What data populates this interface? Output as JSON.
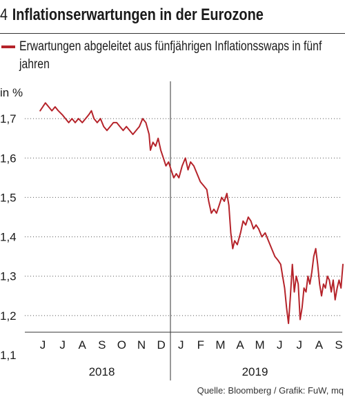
{
  "header": {
    "number": "4",
    "title": "Inflationserwartungen in der Eurozone"
  },
  "legend": {
    "text": "Erwartungen abgeleitet aus fünfjährigen Inflationsswaps in fünf jahren"
  },
  "source": "Quelle: Bloomberg / Grafik: FuW, mq",
  "colors": {
    "series": "#b5232a",
    "grid": "#555555",
    "axis": "#333333"
  },
  "chart_data": {
    "type": "line",
    "unit_label": "in %",
    "ylim": [
      1.1,
      1.8
    ],
    "yticks": [
      1.1,
      1.2,
      1.3,
      1.4,
      1.5,
      1.6,
      1.7
    ],
    "grid": "horizontal dotted",
    "months": [
      "J",
      "J",
      "A",
      "S",
      "O",
      "N",
      "D",
      "J",
      "F",
      "M",
      "A",
      "M",
      "J",
      "J",
      "A",
      "S"
    ],
    "years": [
      "2018",
      "2019"
    ],
    "series": [
      {
        "name": "Erwartungen abgeleitet aus fünfjährigen Inflationsswaps in fünf jahren",
        "points": [
          [
            "2018-05-28",
            1.72
          ],
          [
            "2018-06-01",
            1.73
          ],
          [
            "2018-06-05",
            1.74
          ],
          [
            "2018-06-10",
            1.73
          ],
          [
            "2018-06-15",
            1.72
          ],
          [
            "2018-06-20",
            1.73
          ],
          [
            "2018-06-25",
            1.72
          ],
          [
            "2018-07-01",
            1.71
          ],
          [
            "2018-07-06",
            1.7
          ],
          [
            "2018-07-11",
            1.69
          ],
          [
            "2018-07-16",
            1.7
          ],
          [
            "2018-07-21",
            1.69
          ],
          [
            "2018-07-26",
            1.7
          ],
          [
            "2018-08-01",
            1.69
          ],
          [
            "2018-08-06",
            1.7
          ],
          [
            "2018-08-11",
            1.71
          ],
          [
            "2018-08-15",
            1.72
          ],
          [
            "2018-08-19",
            1.7
          ],
          [
            "2018-08-24",
            1.69
          ],
          [
            "2018-08-29",
            1.7
          ],
          [
            "2018-09-03",
            1.68
          ],
          [
            "2018-09-08",
            1.67
          ],
          [
            "2018-09-13",
            1.68
          ],
          [
            "2018-09-18",
            1.69
          ],
          [
            "2018-09-23",
            1.69
          ],
          [
            "2018-09-28",
            1.68
          ],
          [
            "2018-10-03",
            1.67
          ],
          [
            "2018-10-08",
            1.68
          ],
          [
            "2018-10-13",
            1.67
          ],
          [
            "2018-10-18",
            1.66
          ],
          [
            "2018-10-23",
            1.67
          ],
          [
            "2018-10-28",
            1.68
          ],
          [
            "2018-11-02",
            1.7
          ],
          [
            "2018-11-07",
            1.69
          ],
          [
            "2018-11-12",
            1.66
          ],
          [
            "2018-11-14",
            1.62
          ],
          [
            "2018-11-18",
            1.64
          ],
          [
            "2018-11-22",
            1.63
          ],
          [
            "2018-11-26",
            1.65
          ],
          [
            "2018-11-30",
            1.62
          ],
          [
            "2018-12-04",
            1.6
          ],
          [
            "2018-12-08",
            1.58
          ],
          [
            "2018-12-12",
            1.59
          ],
          [
            "2018-12-16",
            1.57
          ],
          [
            "2018-12-20",
            1.55
          ],
          [
            "2018-12-24",
            1.56
          ],
          [
            "2018-12-28",
            1.55
          ],
          [
            "2019-01-02",
            1.58
          ],
          [
            "2019-01-07",
            1.6
          ],
          [
            "2019-01-11",
            1.57
          ],
          [
            "2019-01-15",
            1.59
          ],
          [
            "2019-01-20",
            1.58
          ],
          [
            "2019-01-25",
            1.56
          ],
          [
            "2019-01-30",
            1.54
          ],
          [
            "2019-02-04",
            1.53
          ],
          [
            "2019-02-09",
            1.52
          ],
          [
            "2019-02-12",
            1.49
          ],
          [
            "2019-02-16",
            1.46
          ],
          [
            "2019-02-20",
            1.47
          ],
          [
            "2019-02-24",
            1.46
          ],
          [
            "2019-02-28",
            1.48
          ],
          [
            "2019-03-04",
            1.5
          ],
          [
            "2019-03-08",
            1.49
          ],
          [
            "2019-03-12",
            1.51
          ],
          [
            "2019-03-15",
            1.48
          ],
          [
            "2019-03-18",
            1.41
          ],
          [
            "2019-03-21",
            1.37
          ],
          [
            "2019-03-24",
            1.39
          ],
          [
            "2019-03-28",
            1.38
          ],
          [
            "2019-04-02",
            1.41
          ],
          [
            "2019-04-06",
            1.44
          ],
          [
            "2019-04-10",
            1.43
          ],
          [
            "2019-04-14",
            1.45
          ],
          [
            "2019-04-18",
            1.44
          ],
          [
            "2019-04-22",
            1.42
          ],
          [
            "2019-04-26",
            1.43
          ],
          [
            "2019-04-30",
            1.42
          ],
          [
            "2019-05-05",
            1.4
          ],
          [
            "2019-05-10",
            1.41
          ],
          [
            "2019-05-15",
            1.39
          ],
          [
            "2019-05-20",
            1.37
          ],
          [
            "2019-05-25",
            1.35
          ],
          [
            "2019-05-30",
            1.34
          ],
          [
            "2019-06-03",
            1.33
          ],
          [
            "2019-06-06",
            1.3
          ],
          [
            "2019-06-09",
            1.27
          ],
          [
            "2019-06-12",
            1.22
          ],
          [
            "2019-06-15",
            1.18
          ],
          [
            "2019-06-18",
            1.25
          ],
          [
            "2019-06-21",
            1.33
          ],
          [
            "2019-06-24",
            1.26
          ],
          [
            "2019-06-27",
            1.3
          ],
          [
            "2019-06-30",
            1.28
          ],
          [
            "2019-07-03",
            1.19
          ],
          [
            "2019-07-06",
            1.22
          ],
          [
            "2019-07-09",
            1.27
          ],
          [
            "2019-07-12",
            1.26
          ],
          [
            "2019-07-15",
            1.3
          ],
          [
            "2019-07-18",
            1.28
          ],
          [
            "2019-07-21",
            1.31
          ],
          [
            "2019-07-24",
            1.35
          ],
          [
            "2019-07-27",
            1.37
          ],
          [
            "2019-07-30",
            1.33
          ],
          [
            "2019-08-02",
            1.28
          ],
          [
            "2019-08-05",
            1.25
          ],
          [
            "2019-08-08",
            1.28
          ],
          [
            "2019-08-11",
            1.27
          ],
          [
            "2019-08-14",
            1.3
          ],
          [
            "2019-08-17",
            1.29
          ],
          [
            "2019-08-20",
            1.26
          ],
          [
            "2019-08-23",
            1.29
          ],
          [
            "2019-08-26",
            1.24
          ],
          [
            "2019-08-29",
            1.27
          ],
          [
            "2019-09-01",
            1.29
          ],
          [
            "2019-09-04",
            1.27
          ],
          [
            "2019-09-07",
            1.33
          ]
        ]
      }
    ]
  }
}
